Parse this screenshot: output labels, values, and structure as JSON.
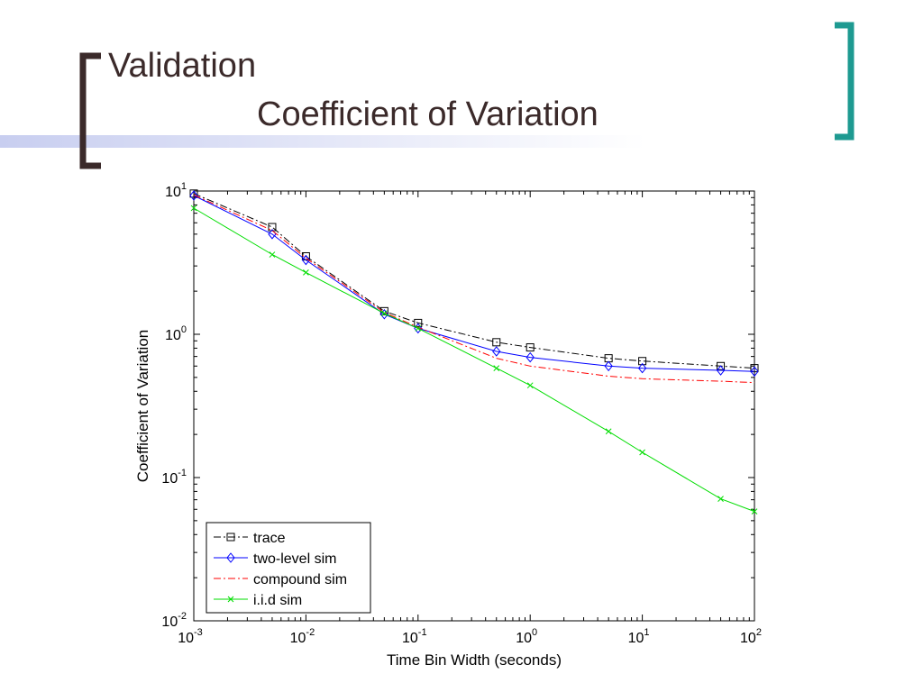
{
  "slide": {
    "title_line1": "Validation",
    "title_line2": "Coefficient of Variation",
    "colors": {
      "band": "#c8cef0",
      "left_bracket": "#3b2a2a",
      "right_bracket": "#1e9a91",
      "title": "#3b2a2a"
    }
  },
  "chart_data": {
    "type": "line",
    "title": "",
    "xlabel": "Time Bin Width (seconds)",
    "ylabel": "Coefficient of Variation",
    "xscale": "log",
    "yscale": "log",
    "xlim": [
      0.001,
      100
    ],
    "ylim": [
      0.01,
      10
    ],
    "x_ticks": [
      {
        "value": 0.001,
        "base": "10",
        "exp": "-3"
      },
      {
        "value": 0.01,
        "base": "10",
        "exp": "-2"
      },
      {
        "value": 0.1,
        "base": "10",
        "exp": "-1"
      },
      {
        "value": 1,
        "base": "10",
        "exp": "0"
      },
      {
        "value": 10,
        "base": "10",
        "exp": "1"
      },
      {
        "value": 100,
        "base": "10",
        "exp": "2"
      }
    ],
    "y_ticks": [
      {
        "value": 0.01,
        "base": "10",
        "exp": "-2"
      },
      {
        "value": 0.1,
        "base": "10",
        "exp": "-1"
      },
      {
        "value": 1,
        "base": "10",
        "exp": "0"
      },
      {
        "value": 10,
        "base": "10",
        "exp": "1"
      }
    ],
    "grid": false,
    "legend": "bottom-left",
    "x": [
      0.001,
      0.005,
      0.01,
      0.05,
      0.1,
      0.5,
      1,
      5,
      10,
      50,
      100
    ],
    "series": [
      {
        "name": "trace",
        "color": "#000000",
        "dash": "dashdot",
        "marker": "square",
        "values": [
          9.6,
          5.6,
          3.5,
          1.45,
          1.2,
          0.88,
          0.81,
          0.68,
          0.65,
          0.6,
          0.58
        ]
      },
      {
        "name": "two-level sim",
        "color": "#0000ff",
        "dash": "solid",
        "marker": "diamond",
        "values": [
          9.3,
          5.0,
          3.3,
          1.38,
          1.1,
          0.76,
          0.69,
          0.6,
          0.58,
          0.56,
          0.55
        ]
      },
      {
        "name": "compound sim",
        "color": "#ff0000",
        "dash": "dashdot",
        "marker": "none",
        "values": [
          9.4,
          5.3,
          3.4,
          1.42,
          1.12,
          0.68,
          0.6,
          0.51,
          0.49,
          0.47,
          0.46
        ]
      },
      {
        "name": "i.i.d sim",
        "color": "#00dd00",
        "dash": "solid",
        "marker": "x",
        "values": [
          7.6,
          3.6,
          2.7,
          1.4,
          1.1,
          0.58,
          0.44,
          0.21,
          0.15,
          0.071,
          0.058
        ]
      }
    ]
  }
}
